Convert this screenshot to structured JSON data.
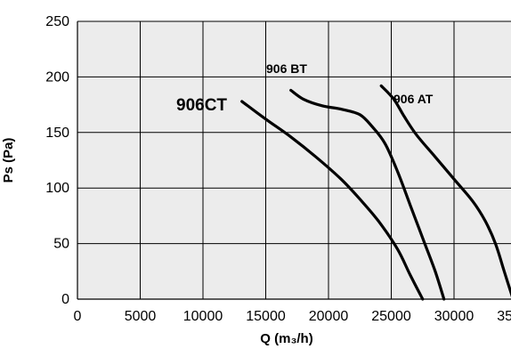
{
  "chart_data": {
    "type": "line",
    "xlabel": "Q (m₃/h)",
    "ylabel": "Ps (Pa)",
    "xlim": [
      0,
      35000
    ],
    "ylim": [
      0,
      250
    ],
    "grid": true,
    "x_ticks": [
      0,
      5000,
      10000,
      15000,
      20000,
      25000,
      30000,
      35000
    ],
    "x_tick_labels": [
      "0",
      "5000",
      "10000",
      "15000",
      "20000",
      "25000",
      "30000",
      "35000"
    ],
    "y_ticks": [
      0,
      50,
      100,
      150,
      200,
      250
    ],
    "y_tick_labels": [
      "0",
      "50",
      "100",
      "150",
      "200",
      "250"
    ],
    "series": [
      {
        "name": "906CT",
        "color": "#000000",
        "points": [
          [
            13100,
            178
          ],
          [
            15000,
            162
          ],
          [
            17000,
            146
          ],
          [
            19000,
            128
          ],
          [
            21000,
            108
          ],
          [
            22500,
            90
          ],
          [
            24000,
            70
          ],
          [
            25500,
            45
          ],
          [
            26500,
            22
          ],
          [
            27500,
            0
          ]
        ]
      },
      {
        "name": "906 BT",
        "color": "#000000",
        "points": [
          [
            17000,
            188
          ],
          [
            18000,
            180
          ],
          [
            19500,
            174
          ],
          [
            21000,
            171
          ],
          [
            22500,
            166
          ],
          [
            23500,
            155
          ],
          [
            24500,
            140
          ],
          [
            25500,
            115
          ],
          [
            26500,
            85
          ],
          [
            27500,
            55
          ],
          [
            28500,
            25
          ],
          [
            29200,
            0
          ]
        ]
      },
      {
        "name": "906 AT",
        "color": "#000000",
        "points": [
          [
            24200,
            192
          ],
          [
            25200,
            180
          ],
          [
            26000,
            165
          ],
          [
            27000,
            148
          ],
          [
            28500,
            128
          ],
          [
            30000,
            108
          ],
          [
            31500,
            88
          ],
          [
            32500,
            70
          ],
          [
            33300,
            50
          ],
          [
            34000,
            25
          ],
          [
            34700,
            0
          ]
        ]
      }
    ]
  }
}
